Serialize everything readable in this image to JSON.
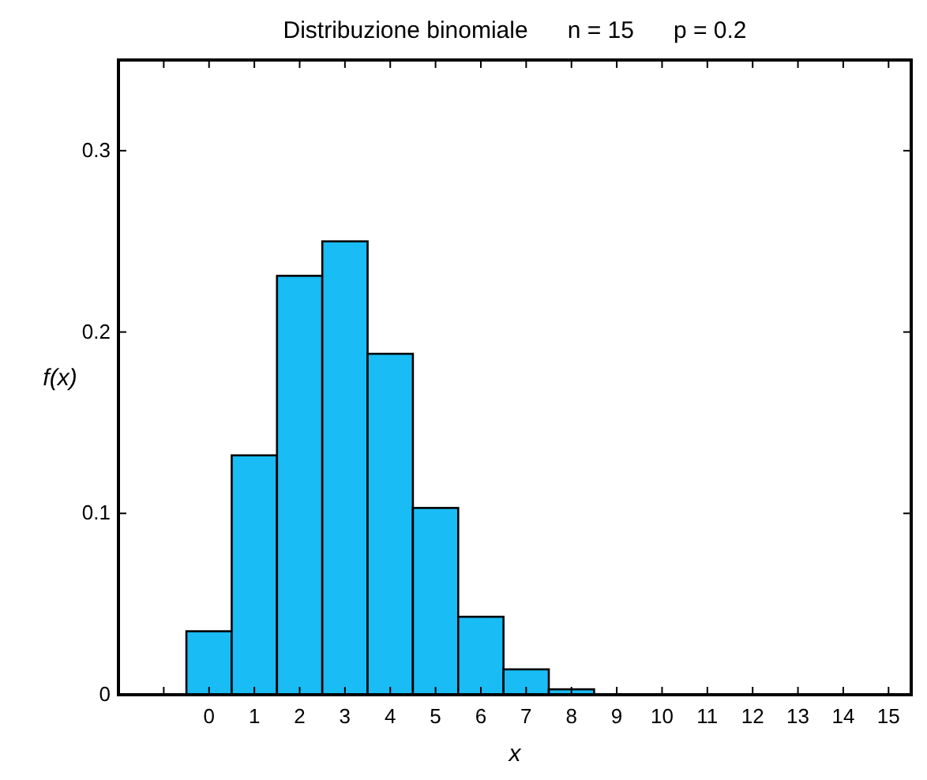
{
  "chart_data": {
    "type": "histogram",
    "title": "Distribuzione binomiale      n = 15      p = 0.2",
    "xlabel": "x",
    "ylabel": "f(x)",
    "bins": [
      -0.5,
      0.5,
      1.5,
      2.5,
      3.5,
      4.5,
      5.5,
      6.5,
      7.5,
      8.5,
      9.5,
      10.5,
      11.5,
      12.5,
      13.5,
      14.5,
      15.5
    ],
    "values": [
      0.035,
      0.132,
      0.231,
      0.25,
      0.188,
      0.103,
      0.043,
      0.014,
      0.003,
      0,
      0,
      0,
      0,
      0,
      0,
      0
    ],
    "color": "#19bcf5",
    "xlim": [
      -2,
      15.5
    ],
    "xticks": [
      {
        "value": -1,
        "label": null
      },
      0,
      1,
      2,
      3,
      4,
      5,
      6,
      7,
      8,
      9,
      10,
      11,
      12,
      13,
      14,
      15
    ],
    "ylim": [
      0,
      0.35
    ],
    "yticks": [
      0,
      0.1,
      0.2,
      0.3
    ],
    "grid": false
  }
}
